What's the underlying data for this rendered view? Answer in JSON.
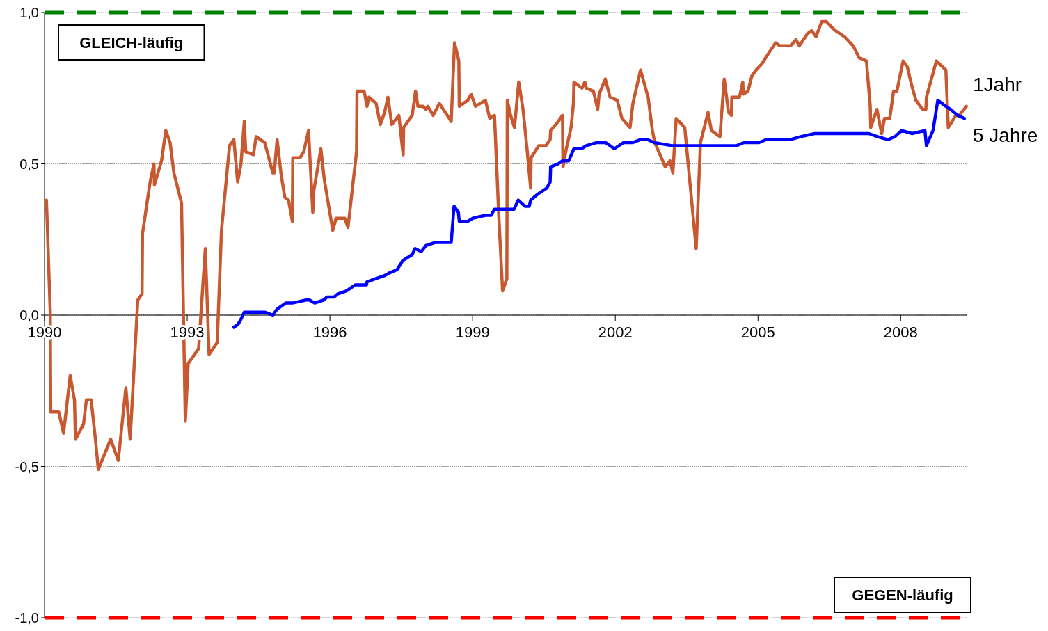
{
  "chart_data": {
    "type": "line",
    "xlim": [
      1990,
      2009.4
    ],
    "xticks": [
      1990,
      1993,
      1996,
      1999,
      2002,
      2005,
      2008
    ],
    "ylim": [
      -1,
      1
    ],
    "yticks": [
      {
        "value": -1,
        "label": "-1,0"
      },
      {
        "value": -0.5,
        "label": "-0,5"
      },
      {
        "value": 0,
        "label": "0,0"
      },
      {
        "value": 0.5,
        "label": "0,5"
      },
      {
        "value": 1,
        "label": "1,0"
      }
    ],
    "grid": "y",
    "legend": false,
    "marker": "none",
    "line_style": "solid",
    "ref_lines": [
      {
        "axis": "y",
        "value": 1,
        "color": "#008000",
        "line_style": "dashed"
      },
      {
        "axis": "y",
        "value": -1,
        "color": "#ff0000",
        "line_style": "dashed"
      }
    ],
    "annotations": [
      "GLEICH-läufig",
      "GEGEN-läufig"
    ],
    "series": [
      {
        "name": "1Jahr",
        "color": "#c8582f",
        "x": [
          1990.04,
          1990.12,
          1990.13,
          1990.3,
          1990.4,
          1990.54,
          1990.63,
          1990.65,
          1990.82,
          1990.88,
          1990.98,
          1991.07,
          1991.13,
          1991.39,
          1991.55,
          1991.71,
          1991.8,
          1991.96,
          1992.05,
          1992.06,
          1992.22,
          1992.3,
          1992.31,
          1992.46,
          1992.55,
          1992.64,
          1992.72,
          1992.88,
          1992.96,
          1993.02,
          1993.24,
          1993.38,
          1993.46,
          1993.63,
          1993.72,
          1993.89,
          1993.98,
          1994.06,
          1994.13,
          1994.2,
          1994.23,
          1994.39,
          1994.45,
          1994.63,
          1994.8,
          1994.83,
          1994.89,
          1994.97,
          1995.05,
          1995.13,
          1995.21,
          1995.22,
          1995.37,
          1995.45,
          1995.55,
          1995.64,
          1995.66,
          1995.81,
          1995.88,
          1996.06,
          1996.13,
          1996.31,
          1996.38,
          1996.56,
          1996.57,
          1996.72,
          1996.78,
          1996.82,
          1996.97,
          1997.06,
          1997.15,
          1997.22,
          1997.3,
          1997.45,
          1997.54,
          1997.55,
          1997.73,
          1997.8,
          1997.85,
          1997.96,
          1998.02,
          1998.06,
          1998.17,
          1998.3,
          1998.51,
          1998.55,
          1998.62,
          1998.71,
          1998.72,
          1998.9,
          1998.97,
          1999.06,
          1999.27,
          1999.36,
          1999.46,
          1999.55,
          1999.63,
          1999.72,
          1999.73,
          1999.8,
          1999.88,
          1999.97,
          2000.06,
          2000.15,
          2000.22,
          2000.23,
          2000.39,
          2000.54,
          2000.63,
          2000.64,
          2000.8,
          2000.89,
          2000.9,
          2000.97,
          2001.07,
          2001.12,
          2001.13,
          2001.3,
          2001.36,
          2001.39,
          2001.54,
          2001.63,
          2001.66,
          2001.79,
          2001.89,
          2002.04,
          2002.14,
          2002.31,
          2002.37,
          2002.53,
          2002.69,
          2002.78,
          2002.83,
          2002.97,
          2003.05,
          2003.15,
          2003.21,
          2003.28,
          2003.46,
          2003.7,
          2003.79,
          2003.95,
          2004.02,
          2004.2,
          2004.29,
          2004.38,
          2004.44,
          2004.45,
          2004.61,
          2004.68,
          2004.69,
          2004.79,
          2004.87,
          2004.96,
          2005.08,
          2005.2,
          2005.37,
          2005.46,
          2005.68,
          2005.8,
          2005.87,
          2006.04,
          2006.13,
          2006.22,
          2006.34,
          2006.44,
          2006.56,
          2006.63,
          2006.82,
          2007.0,
          2007.13,
          2007.28,
          2007.36,
          2007.37,
          2007.5,
          2007.6,
          2007.66,
          2007.77,
          2007.85,
          2007.92,
          2008.05,
          2008.14,
          2008.23,
          2008.32,
          2008.46,
          2008.53,
          2008.54,
          2008.75,
          2008.95,
          2009.0,
          2009.16,
          2009.23,
          2009.38
        ],
        "values": [
          0.38,
          0.01,
          -0.32,
          -0.32,
          -0.39,
          -0.2,
          -0.28,
          -0.41,
          -0.36,
          -0.28,
          -0.28,
          -0.41,
          -0.51,
          -0.41,
          -0.48,
          -0.24,
          -0.41,
          0.05,
          0.07,
          0.27,
          0.44,
          0.5,
          0.43,
          0.51,
          0.61,
          0.57,
          0.47,
          0.37,
          -0.35,
          -0.16,
          -0.11,
          0.22,
          -0.13,
          -0.09,
          0.28,
          0.56,
          0.58,
          0.44,
          0.5,
          0.64,
          0.54,
          0.53,
          0.59,
          0.57,
          0.47,
          0.47,
          0.58,
          0.47,
          0.39,
          0.38,
          0.31,
          0.52,
          0.52,
          0.54,
          0.61,
          0.34,
          0.41,
          0.55,
          0.45,
          0.28,
          0.32,
          0.32,
          0.29,
          0.54,
          0.74,
          0.74,
          0.69,
          0.72,
          0.7,
          0.63,
          0.67,
          0.72,
          0.63,
          0.66,
          0.53,
          0.62,
          0.66,
          0.74,
          0.69,
          0.69,
          0.68,
          0.69,
          0.66,
          0.7,
          0.65,
          0.64,
          0.9,
          0.84,
          0.69,
          0.71,
          0.73,
          0.69,
          0.71,
          0.65,
          0.66,
          0.33,
          0.08,
          0.12,
          0.71,
          0.66,
          0.62,
          0.77,
          0.68,
          0.54,
          0.42,
          0.52,
          0.56,
          0.56,
          0.58,
          0.61,
          0.64,
          0.66,
          0.49,
          0.55,
          0.62,
          0.7,
          0.77,
          0.75,
          0.77,
          0.75,
          0.74,
          0.68,
          0.73,
          0.78,
          0.72,
          0.71,
          0.65,
          0.62,
          0.7,
          0.81,
          0.72,
          0.61,
          0.57,
          0.52,
          0.49,
          0.51,
          0.47,
          0.65,
          0.62,
          0.22,
          0.57,
          0.67,
          0.61,
          0.59,
          0.78,
          0.67,
          0.66,
          0.72,
          0.72,
          0.77,
          0.73,
          0.74,
          0.79,
          0.81,
          0.83,
          0.86,
          0.9,
          0.89,
          0.89,
          0.91,
          0.89,
          0.93,
          0.94,
          0.92,
          0.97,
          0.97,
          0.95,
          0.94,
          0.92,
          0.89,
          0.85,
          0.84,
          0.69,
          0.62,
          0.68,
          0.6,
          0.65,
          0.65,
          0.74,
          0.74,
          0.84,
          0.82,
          0.76,
          0.71,
          0.68,
          0.68,
          0.72,
          0.84,
          0.81,
          0.62,
          0.66,
          0.66,
          0.69
        ]
      },
      {
        "name": "5 Jahre",
        "color": "#0000ff",
        "x": [
          1993.98,
          1994.07,
          1994.14,
          1994.2,
          1994.27,
          1994.48,
          1994.63,
          1994.8,
          1994.89,
          1995.07,
          1995.21,
          1995.5,
          1995.57,
          1995.68,
          1995.87,
          1995.94,
          1996.09,
          1996.16,
          1996.35,
          1996.53,
          1996.77,
          1996.78,
          1996.95,
          1997.14,
          1997.26,
          1997.41,
          1997.53,
          1997.73,
          1997.79,
          1997.92,
          1998.02,
          1998.21,
          1998.36,
          1998.55,
          1998.61,
          1998.7,
          1998.72,
          1998.9,
          1999.0,
          1999.27,
          1999.39,
          1999.46,
          1999.87,
          1999.96,
          2000.1,
          2000.19,
          2000.22,
          2000.37,
          2000.56,
          2000.63,
          2000.64,
          2000.8,
          2000.89,
          2001.02,
          2001.13,
          2001.29,
          2001.39,
          2001.6,
          2001.8,
          2001.98,
          2002.17,
          2002.36,
          2002.53,
          2002.68,
          2002.82,
          2003.19,
          2003.48,
          2003.85,
          2004.14,
          2004.29,
          2004.55,
          2004.7,
          2005.02,
          2005.17,
          2005.46,
          2005.68,
          2005.9,
          2006.19,
          2006.41,
          2006.56,
          2006.85,
          2007.14,
          2007.33,
          2007.51,
          2007.73,
          2007.88,
          2008.02,
          2008.24,
          2008.51,
          2008.54,
          2008.68,
          2008.78,
          2008.95,
          2009.05,
          2009.2,
          2009.34
        ],
        "values": [
          -0.04,
          -0.03,
          -0.01,
          0.01,
          0.01,
          0.01,
          0.01,
          0.0,
          0.02,
          0.04,
          0.04,
          0.05,
          0.05,
          0.04,
          0.05,
          0.06,
          0.06,
          0.07,
          0.08,
          0.1,
          0.1,
          0.11,
          0.12,
          0.13,
          0.14,
          0.15,
          0.18,
          0.2,
          0.22,
          0.21,
          0.23,
          0.24,
          0.24,
          0.24,
          0.36,
          0.34,
          0.31,
          0.31,
          0.32,
          0.33,
          0.33,
          0.35,
          0.35,
          0.38,
          0.36,
          0.36,
          0.38,
          0.4,
          0.42,
          0.44,
          0.49,
          0.5,
          0.51,
          0.51,
          0.55,
          0.55,
          0.56,
          0.57,
          0.57,
          0.55,
          0.57,
          0.57,
          0.58,
          0.58,
          0.57,
          0.56,
          0.56,
          0.56,
          0.56,
          0.56,
          0.56,
          0.57,
          0.57,
          0.58,
          0.58,
          0.58,
          0.59,
          0.6,
          0.6,
          0.6,
          0.6,
          0.6,
          0.6,
          0.59,
          0.58,
          0.59,
          0.61,
          0.6,
          0.61,
          0.56,
          0.61,
          0.71,
          0.69,
          0.68,
          0.66,
          0.65
        ]
      }
    ]
  }
}
